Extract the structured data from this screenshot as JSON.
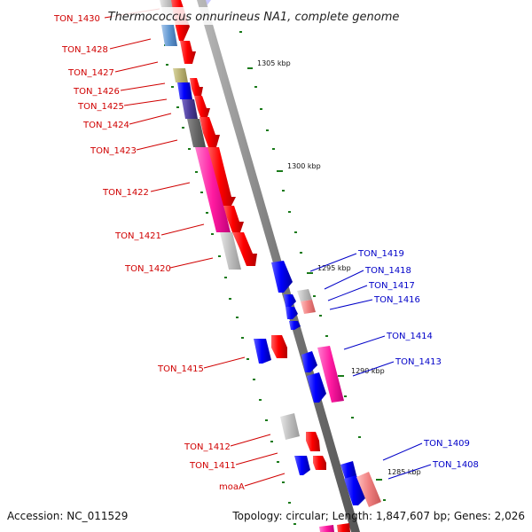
{
  "title": "Thermococcus onnurineus NA1, complete genome",
  "accession": "Accession: NC_011529",
  "summary": "Topology: circular; Length: 1,847,607 bp; Genes: 2,026",
  "kbp_ticks": [
    {
      "id": "k1305",
      "label": "1305 kbp"
    },
    {
      "id": "k1300",
      "label": "1300 kbp"
    },
    {
      "id": "k1295",
      "label": "1295 kbp"
    },
    {
      "id": "k1290",
      "label": "1290 kbp"
    },
    {
      "id": "k1285",
      "label": "1285 kbp"
    }
  ],
  "gene_labels": [
    {
      "id": "TON_1430",
      "label": "TON_1430",
      "strand": "reverse"
    },
    {
      "id": "TON_1428",
      "label": "TON_1428",
      "strand": "reverse"
    },
    {
      "id": "TON_1427",
      "label": "TON_1427",
      "strand": "reverse"
    },
    {
      "id": "TON_1426",
      "label": "TON_1426",
      "strand": "reverse"
    },
    {
      "id": "TON_1425",
      "label": "TON_1425",
      "strand": "reverse"
    },
    {
      "id": "TON_1424",
      "label": "TON_1424",
      "strand": "reverse"
    },
    {
      "id": "TON_1423",
      "label": "TON_1423",
      "strand": "reverse"
    },
    {
      "id": "TON_1422",
      "label": "TON_1422",
      "strand": "reverse"
    },
    {
      "id": "TON_1421",
      "label": "TON_1421",
      "strand": "reverse"
    },
    {
      "id": "TON_1420",
      "label": "TON_1420",
      "strand": "reverse"
    },
    {
      "id": "TON_1415",
      "label": "TON_1415",
      "strand": "reverse"
    },
    {
      "id": "TON_1412",
      "label": "TON_1412",
      "strand": "reverse"
    },
    {
      "id": "TON_1411",
      "label": "TON_1411",
      "strand": "reverse"
    },
    {
      "id": "moaA",
      "label": "moaA",
      "strand": "reverse"
    },
    {
      "id": "TON_1419",
      "label": "TON_1419",
      "strand": "forward"
    },
    {
      "id": "TON_1418",
      "label": "TON_1418",
      "strand": "forward"
    },
    {
      "id": "TON_1417",
      "label": "TON_1417",
      "strand": "forward"
    },
    {
      "id": "TON_1416",
      "label": "TON_1416",
      "strand": "forward"
    },
    {
      "id": "TON_1414",
      "label": "TON_1414",
      "strand": "forward"
    },
    {
      "id": "TON_1413",
      "label": "TON_1413",
      "strand": "forward"
    },
    {
      "id": "TON_1409",
      "label": "TON_1409",
      "strand": "forward"
    },
    {
      "id": "TON_1408",
      "label": "TON_1408",
      "strand": "forward"
    }
  ],
  "colors": {
    "reverse_label": "#d00000",
    "forward_label": "#0000c8",
    "backbone": "#8a8a8a",
    "gene_forward": "#ff0000",
    "gene_reverse": "#0000ff",
    "tick": "#1a7a1a"
  }
}
